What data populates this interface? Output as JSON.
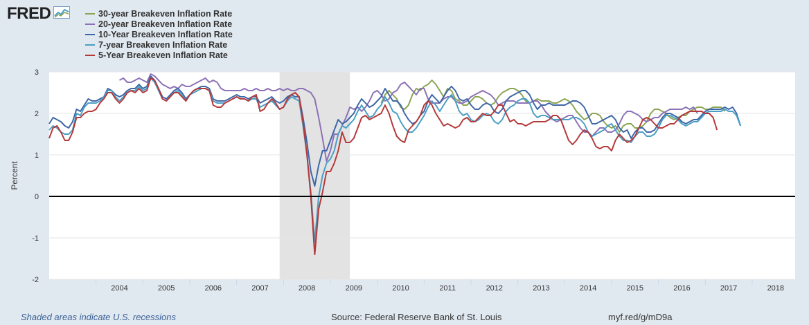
{
  "logo": {
    "text": "FRED",
    "icon": "sparkline-icon"
  },
  "footer": {
    "recession_note": "Shaded areas indicate U.S. recessions",
    "source": "Source: Federal Reserve Bank of St. Louis",
    "link": "myf.red/g/mD9a"
  },
  "chart_data": {
    "type": "line",
    "title": "",
    "xlabel": "",
    "ylabel": "Percent",
    "xlim": [
      "2003-01",
      "2018-12"
    ],
    "ylim": [
      -2,
      3
    ],
    "yticks": [
      -2,
      -1,
      0,
      1,
      2,
      3
    ],
    "xticks": [
      "2004",
      "2005",
      "2006",
      "2007",
      "2008",
      "2009",
      "2010",
      "2011",
      "2012",
      "2013",
      "2014",
      "2015",
      "2016",
      "2017",
      "2018"
    ],
    "grid": true,
    "legend": "top-left",
    "zero_line": true,
    "recessions": [
      {
        "start": "2007-12",
        "end": "2009-06"
      }
    ],
    "series": [
      {
        "name": "30-year Breakeven Inflation Rate",
        "color": "#8ba552",
        "start": "2010-02",
        "values": [
          2.25,
          2.45,
          2.55,
          2.45,
          2.35,
          2.15,
          2.1,
          2.2,
          2.45,
          2.6,
          2.55,
          2.65,
          2.7,
          2.8,
          2.7,
          2.55,
          2.4,
          2.6,
          2.55,
          2.35,
          2.3,
          2.2,
          2.2,
          2.3,
          2.4,
          2.4,
          2.35,
          2.25,
          2.2,
          2.25,
          2.4,
          2.5,
          2.55,
          2.6,
          2.6,
          2.55,
          2.45,
          2.3,
          2.25,
          2.3,
          2.35,
          2.3,
          2.3,
          2.3,
          2.25,
          2.25,
          2.3,
          2.35,
          2.3,
          2.2,
          2.05,
          1.95,
          1.85,
          1.9,
          2.0,
          2.0,
          1.95,
          1.8,
          1.7,
          1.65,
          1.7,
          1.55,
          1.7,
          1.75,
          1.75,
          1.65,
          1.65,
          1.7,
          1.8,
          2.0,
          2.1,
          2.1,
          2.05,
          2.0,
          1.9,
          1.85,
          1.9,
          1.95,
          1.95,
          2.05,
          2.1,
          2.15,
          2.15,
          2.1,
          2.1,
          2.15,
          2.15,
          2.15,
          2.05
        ]
      },
      {
        "name": "20-year Breakeven Inflation Rate",
        "color": "#8b71b5",
        "start": "2004-07",
        "values": [
          2.8,
          2.85,
          2.75,
          2.75,
          2.8,
          2.85,
          2.8,
          2.75,
          2.95,
          2.9,
          2.8,
          2.7,
          2.65,
          2.6,
          2.65,
          2.6,
          2.7,
          2.65,
          2.65,
          2.7,
          2.75,
          2.8,
          2.85,
          2.75,
          2.8,
          2.75,
          2.6,
          2.55,
          2.55,
          2.55,
          2.55,
          2.55,
          2.6,
          2.55,
          2.55,
          2.6,
          2.55,
          2.55,
          2.6,
          2.55,
          2.55,
          2.6,
          2.55,
          2.6,
          2.55,
          2.55,
          2.6,
          2.6,
          2.55,
          2.5,
          2.35,
          1.9,
          1.4,
          0.85,
          1.1,
          1.5,
          1.5,
          1.7,
          1.9,
          2.15,
          2.1,
          2.15,
          2.05,
          2.15,
          2.3,
          2.5,
          2.55,
          2.45,
          2.3,
          2.35,
          2.5,
          2.55,
          2.7,
          2.75,
          2.65,
          2.55,
          2.45,
          2.6,
          2.6,
          2.35,
          2.25,
          2.25,
          2.25,
          2.35,
          2.4,
          2.4,
          2.3,
          2.25,
          2.25,
          2.3,
          2.4,
          2.45,
          2.5,
          2.55,
          2.5,
          2.45,
          2.35,
          2.2,
          2.25,
          2.3,
          2.3,
          2.3,
          2.25,
          2.25,
          2.25,
          2.25,
          2.3,
          2.3,
          2.2,
          2.05,
          1.95,
          1.85,
          1.8,
          1.85,
          1.9,
          1.95,
          1.95,
          1.8,
          1.65,
          1.55,
          1.55,
          1.45,
          1.55,
          1.65,
          1.65,
          1.55,
          1.55,
          1.6,
          1.75,
          1.95,
          2.05,
          2.05,
          2.0,
          1.95,
          1.85,
          1.8,
          1.85,
          1.9,
          1.9,
          2.0,
          2.05,
          2.1,
          2.1,
          2.1,
          2.1,
          2.15,
          2.1,
          2.15,
          2.0
        ]
      },
      {
        "name": "10-Year Breakeven Inflation Rate",
        "color": "#3e67a8",
        "start": "2003-01",
        "values": [
          1.75,
          1.9,
          1.85,
          1.8,
          1.7,
          1.65,
          1.8,
          2.1,
          2.05,
          2.2,
          2.35,
          2.3,
          2.3,
          2.35,
          2.4,
          2.6,
          2.55,
          2.45,
          2.4,
          2.45,
          2.55,
          2.6,
          2.6,
          2.7,
          2.6,
          2.65,
          2.9,
          2.8,
          2.6,
          2.4,
          2.35,
          2.45,
          2.55,
          2.6,
          2.5,
          2.35,
          2.45,
          2.55,
          2.6,
          2.65,
          2.65,
          2.6,
          2.35,
          2.3,
          2.3,
          2.3,
          2.35,
          2.4,
          2.45,
          2.4,
          2.4,
          2.35,
          2.4,
          2.4,
          2.25,
          2.3,
          2.35,
          2.4,
          2.3,
          2.25,
          2.3,
          2.4,
          2.45,
          2.4,
          2.4,
          1.9,
          1.3,
          0.6,
          0.25,
          0.75,
          1.1,
          1.1,
          1.35,
          1.6,
          1.85,
          1.75,
          1.8,
          1.9,
          2.0,
          2.2,
          2.35,
          2.25,
          2.15,
          2.2,
          2.3,
          2.4,
          2.6,
          2.45,
          2.3,
          2.3,
          2.2,
          2.0,
          1.85,
          1.75,
          1.8,
          1.95,
          2.05,
          2.3,
          2.45,
          2.35,
          2.25,
          2.4,
          2.55,
          2.65,
          2.55,
          2.35,
          2.3,
          2.35,
          2.2,
          2.1,
          2.1,
          2.2,
          2.25,
          2.2,
          2.05,
          2.0,
          2.1,
          2.3,
          2.4,
          2.45,
          2.5,
          2.55,
          2.55,
          2.45,
          2.25,
          2.1,
          2.2,
          2.2,
          2.25,
          2.2,
          2.2,
          2.2,
          2.2,
          2.25,
          2.3,
          2.3,
          2.25,
          2.15,
          1.95,
          1.75,
          1.75,
          1.8,
          1.85,
          1.9,
          1.95,
          1.85,
          1.65,
          1.55,
          1.6,
          1.4,
          1.55,
          1.65,
          1.65,
          1.55,
          1.55,
          1.6,
          1.75,
          1.9,
          2.0,
          2.0,
          1.95,
          1.9,
          1.8,
          1.75,
          1.8,
          1.85,
          1.85,
          1.95,
          2.05,
          2.1,
          2.1,
          2.1,
          2.1,
          2.15,
          2.1,
          2.15,
          2.0,
          1.7
        ]
      },
      {
        "name": "7-year Breakeven Inflation Rate",
        "color": "#4a9ec4",
        "start": "2003-01",
        "values": [
          1.6,
          1.7,
          1.65,
          1.55,
          1.5,
          1.5,
          1.6,
          2.0,
          1.95,
          2.15,
          2.25,
          2.25,
          2.25,
          2.3,
          2.4,
          2.55,
          2.55,
          2.4,
          2.3,
          2.4,
          2.5,
          2.55,
          2.55,
          2.65,
          2.55,
          2.6,
          2.85,
          2.75,
          2.55,
          2.35,
          2.3,
          2.4,
          2.5,
          2.55,
          2.45,
          2.3,
          2.45,
          2.5,
          2.55,
          2.6,
          2.6,
          2.55,
          2.3,
          2.25,
          2.25,
          2.25,
          2.3,
          2.35,
          2.4,
          2.35,
          2.35,
          2.3,
          2.35,
          2.35,
          2.15,
          2.2,
          2.25,
          2.3,
          2.2,
          2.1,
          2.15,
          2.3,
          2.4,
          2.35,
          2.3,
          1.7,
          1.0,
          0.1,
          -1.1,
          0.0,
          0.5,
          0.8,
          0.9,
          1.1,
          1.5,
          1.7,
          1.65,
          1.75,
          1.85,
          2.05,
          2.2,
          2.05,
          1.9,
          1.95,
          2.1,
          2.2,
          2.4,
          2.25,
          2.05,
          2.0,
          1.8,
          1.65,
          1.55,
          1.55,
          1.65,
          1.8,
          1.95,
          2.15,
          2.3,
          2.2,
          2.05,
          2.2,
          2.35,
          2.45,
          2.3,
          2.05,
          1.95,
          2.0,
          1.85,
          1.8,
          1.85,
          1.95,
          2.0,
          1.95,
          1.8,
          1.75,
          1.85,
          2.05,
          2.15,
          2.2,
          2.3,
          2.35,
          2.35,
          2.25,
          2.0,
          1.9,
          1.95,
          1.95,
          1.9,
          1.85,
          1.85,
          1.85,
          1.85,
          1.85,
          1.9,
          1.9,
          1.85,
          1.75,
          1.55,
          1.45,
          1.5,
          1.55,
          1.6,
          1.7,
          1.75,
          1.6,
          1.45,
          1.35,
          1.35,
          1.3,
          1.45,
          1.55,
          1.55,
          1.45,
          1.45,
          1.5,
          1.65,
          1.85,
          1.95,
          1.95,
          1.9,
          1.85,
          1.75,
          1.7,
          1.75,
          1.8,
          1.8,
          1.9,
          2.0,
          2.05,
          2.05,
          2.05,
          2.05,
          2.1,
          2.05,
          2.05,
          1.95,
          1.7
        ]
      },
      {
        "name": "5-Year Breakeven Inflation Rate",
        "color": "#b5393a",
        "start": "2003-01",
        "values": [
          1.4,
          1.65,
          1.7,
          1.55,
          1.35,
          1.35,
          1.55,
          1.9,
          1.9,
          2.0,
          2.05,
          2.05,
          2.1,
          2.25,
          2.35,
          2.5,
          2.5,
          2.35,
          2.25,
          2.35,
          2.5,
          2.55,
          2.5,
          2.6,
          2.5,
          2.55,
          2.85,
          2.8,
          2.6,
          2.35,
          2.3,
          2.4,
          2.5,
          2.5,
          2.4,
          2.3,
          2.45,
          2.55,
          2.6,
          2.6,
          2.6,
          2.55,
          2.2,
          2.15,
          2.15,
          2.25,
          2.3,
          2.35,
          2.4,
          2.35,
          2.35,
          2.3,
          2.4,
          2.45,
          2.05,
          2.1,
          2.25,
          2.35,
          2.25,
          2.1,
          2.15,
          2.35,
          2.45,
          2.5,
          2.4,
          1.8,
          1.0,
          0.0,
          -1.4,
          -0.3,
          0.1,
          0.6,
          0.6,
          0.8,
          1.1,
          1.55,
          1.3,
          1.3,
          1.4,
          1.65,
          1.9,
          1.95,
          1.85,
          1.9,
          1.95,
          2.0,
          2.2,
          2.0,
          1.7,
          1.45,
          1.35,
          1.3,
          1.6,
          1.7,
          1.8,
          1.95,
          2.2,
          2.3,
          2.2,
          2.0,
          1.85,
          1.7,
          1.75,
          1.7,
          1.65,
          1.7,
          1.85,
          1.9,
          1.8,
          1.8,
          1.9,
          2.0,
          1.95,
          1.95,
          2.05,
          2.2,
          2.2,
          2.0,
          1.8,
          1.85,
          1.75,
          1.75,
          1.7,
          1.75,
          1.8,
          1.8,
          1.8,
          1.8,
          1.85,
          1.95,
          1.95,
          1.85,
          1.6,
          1.35,
          1.25,
          1.35,
          1.5,
          1.6,
          1.55,
          1.4,
          1.2,
          1.15,
          1.2,
          1.2,
          1.1,
          1.35,
          1.5,
          1.4,
          1.3,
          1.35,
          1.45,
          1.65,
          1.85,
          1.9,
          1.85,
          1.75,
          1.65,
          1.65,
          1.7,
          1.75,
          1.75,
          1.85,
          1.95,
          2.0,
          2.05,
          2.05,
          2.05,
          2.05,
          2.0,
          2.0,
          1.9,
          1.6
        ]
      }
    ]
  }
}
